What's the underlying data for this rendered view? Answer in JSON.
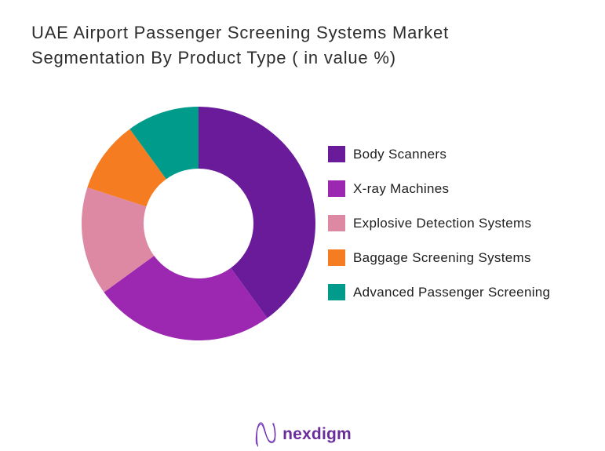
{
  "header": {
    "title": "UAE Airport Passenger Screening Systems Market Segmentation By Product Type ( in value %)",
    "title_lines": [
      "UAE Airport Passenger Screening Systems Market",
      "Segmentation By Product Type ( in value %)"
    ]
  },
  "chart_data": {
    "type": "pie",
    "subtype": "donut",
    "title": "UAE Airport Passenger Screening Systems Market Segmentation By Product Type ( in value %)",
    "units": "value %",
    "start_angle_deg": 0,
    "direction": "clockwise",
    "inner_radius_ratio": 0.47,
    "legend_position": "right",
    "segments": [
      {
        "label": "Body Scanners",
        "value": 40,
        "color": "#6a1b9a"
      },
      {
        "label": "X-ray Machines",
        "value": 25,
        "color": "#9c27b0"
      },
      {
        "label": "Explosive Detection Systems",
        "value": 15,
        "color": "#de89a4"
      },
      {
        "label": "Baggage Screening Systems",
        "value": 10,
        "color": "#f57c20"
      },
      {
        "label": "Advanced Passenger Screening",
        "value": 10,
        "color": "#009b8a"
      }
    ]
  },
  "footer": {
    "brand_name": "nexdigm",
    "brand_color": "#6b2d9b",
    "logo_mark": "nexdigm-n-wave-mark"
  }
}
